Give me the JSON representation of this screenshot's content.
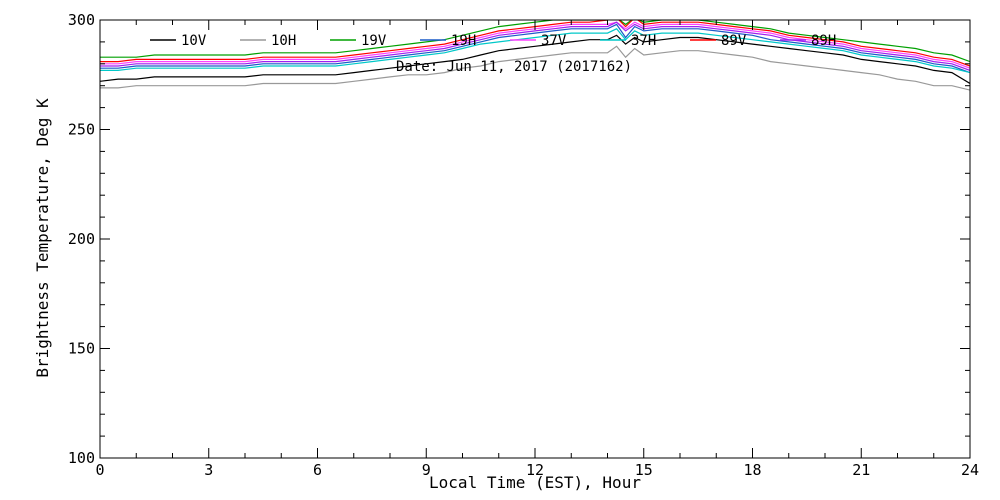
{
  "chart_data": {
    "type": "line",
    "xlabel": "Local Time (EST), Hour",
    "ylabel": "Brightness Temperature, Deg K",
    "annotation": "Date: Jun 11, 2017 (2017162)",
    "xlim": [
      0,
      24
    ],
    "ylim": [
      100,
      300
    ],
    "x_ticks": [
      0,
      3,
      6,
      9,
      12,
      15,
      18,
      21,
      24
    ],
    "y_ticks": [
      100,
      150,
      200,
      250,
      300
    ],
    "grid": false,
    "legend_position": "top, inside plot",
    "x": [
      0,
      0.5,
      1,
      1.5,
      2,
      2.5,
      3,
      3.5,
      4,
      4.5,
      5,
      5.5,
      6,
      6.5,
      7,
      7.5,
      8,
      8.5,
      9,
      9.5,
      10,
      10.5,
      11,
      11.5,
      12,
      12.5,
      13,
      13.5,
      14,
      14.25,
      14.5,
      14.75,
      15,
      15.5,
      16,
      16.5,
      17,
      17.5,
      18,
      18.5,
      19,
      19.5,
      20,
      20.5,
      21,
      21.5,
      22,
      22.5,
      23,
      23.5,
      24
    ],
    "series": [
      {
        "name": "10V",
        "color": "#000000",
        "values": [
          272,
          273,
          273,
          274,
          274,
          274,
          274,
          274,
          274,
          275,
          275,
          275,
          275,
          275,
          276,
          277,
          278,
          279,
          280,
          281,
          282,
          284,
          286,
          287,
          288,
          289,
          290,
          291,
          291,
          293,
          289,
          292,
          290,
          291,
          292,
          292,
          291,
          290,
          289,
          288,
          287,
          286,
          285,
          284,
          282,
          281,
          280,
          279,
          277,
          276,
          271
        ]
      },
      {
        "name": "10H",
        "color": "#999999",
        "values": [
          269,
          269,
          270,
          270,
          270,
          270,
          270,
          270,
          270,
          271,
          271,
          271,
          271,
          271,
          272,
          273,
          274,
          275,
          275,
          276,
          278,
          279,
          281,
          282,
          283,
          284,
          285,
          285,
          285,
          288,
          283,
          287,
          284,
          285,
          286,
          286,
          285,
          284,
          283,
          281,
          280,
          279,
          278,
          277,
          276,
          275,
          273,
          272,
          270,
          270,
          268
        ]
      },
      {
        "name": "19V",
        "color": "#00a000",
        "values": [
          283,
          283,
          283,
          284,
          284,
          284,
          284,
          284,
          284,
          285,
          285,
          285,
          285,
          285,
          286,
          287,
          288,
          289,
          290,
          291,
          293,
          295,
          297,
          298,
          299,
          300,
          300,
          300,
          300,
          301,
          298,
          301,
          299,
          300,
          300,
          300,
          299,
          298,
          297,
          296,
          294,
          293,
          292,
          291,
          290,
          289,
          288,
          287,
          285,
          284,
          281
        ]
      },
      {
        "name": "19H",
        "color": "#1c5cc8",
        "values": [
          278,
          278,
          279,
          279,
          279,
          279,
          279,
          279,
          279,
          280,
          280,
          280,
          280,
          280,
          281,
          282,
          283,
          284,
          285,
          286,
          288,
          290,
          292,
          293,
          294,
          295,
          296,
          296,
          296,
          298,
          292,
          297,
          295,
          296,
          296,
          296,
          295,
          294,
          293,
          291,
          290,
          289,
          288,
          287,
          285,
          284,
          283,
          282,
          280,
          279,
          276
        ]
      },
      {
        "name": "37V",
        "color": "#ff40ff",
        "values": [
          280,
          280,
          281,
          281,
          281,
          281,
          281,
          281,
          281,
          282,
          282,
          282,
          282,
          282,
          283,
          284,
          285,
          286,
          287,
          288,
          290,
          292,
          294,
          295,
          296,
          297,
          298,
          298,
          298,
          299,
          296,
          299,
          297,
          298,
          298,
          298,
          297,
          296,
          295,
          294,
          292,
          291,
          290,
          289,
          287,
          286,
          285,
          284,
          282,
          281,
          278
        ]
      },
      {
        "name": "37H",
        "color": "#00c8c8",
        "values": [
          277,
          277,
          278,
          278,
          278,
          278,
          278,
          278,
          278,
          279,
          279,
          279,
          279,
          279,
          280,
          281,
          282,
          283,
          284,
          285,
          287,
          289,
          290,
          291,
          292,
          293,
          294,
          294,
          294,
          296,
          291,
          295,
          293,
          294,
          294,
          294,
          293,
          292,
          291,
          290,
          289,
          288,
          287,
          286,
          284,
          283,
          282,
          281,
          279,
          278,
          276
        ]
      },
      {
        "name": "89V",
        "color": "#ff0000",
        "values": [
          281,
          281,
          282,
          282,
          282,
          282,
          282,
          282,
          282,
          283,
          283,
          283,
          283,
          283,
          284,
          285,
          286,
          287,
          288,
          289,
          291,
          293,
          295,
          296,
          297,
          298,
          299,
          299,
          300,
          301,
          297,
          301,
          298,
          299,
          299,
          299,
          298,
          297,
          296,
          295,
          293,
          292,
          291,
          290,
          288,
          287,
          286,
          285,
          283,
          282,
          279
        ]
      },
      {
        "name": "89H",
        "color": "#a020f0",
        "values": [
          279,
          279,
          280,
          280,
          280,
          280,
          280,
          280,
          280,
          281,
          281,
          281,
          281,
          281,
          282,
          283,
          284,
          285,
          286,
          287,
          289,
          291,
          293,
          294,
          295,
          296,
          297,
          297,
          297,
          299,
          295,
          298,
          296,
          297,
          297,
          297,
          296,
          295,
          294,
          293,
          291,
          290,
          289,
          288,
          286,
          285,
          284,
          283,
          281,
          280,
          277
        ]
      }
    ]
  }
}
